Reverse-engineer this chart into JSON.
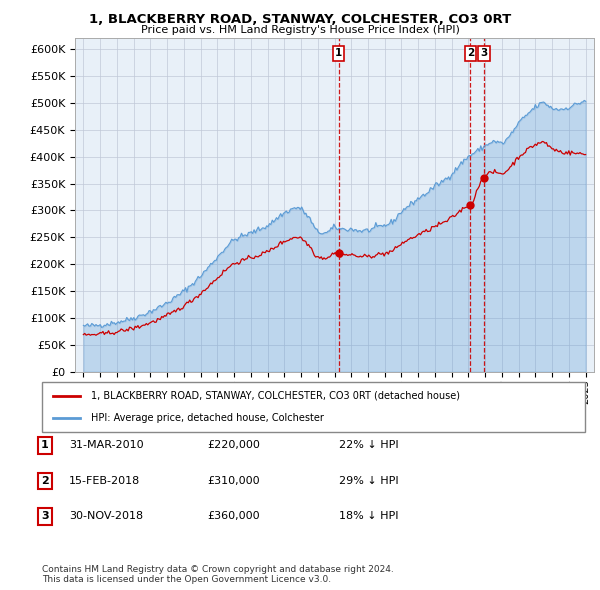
{
  "title": "1, BLACKBERRY ROAD, STANWAY, COLCHESTER, CO3 0RT",
  "subtitle": "Price paid vs. HM Land Registry's House Price Index (HPI)",
  "hpi_color": "#5b9bd5",
  "hpi_fill": "#ddeeff",
  "price_color": "#cc0000",
  "background_color": "#ffffff",
  "plot_bg": "#e8f0f8",
  "ylim": [
    0,
    620000
  ],
  "yticks": [
    0,
    50000,
    100000,
    150000,
    200000,
    250000,
    300000,
    350000,
    400000,
    450000,
    500000,
    550000,
    600000
  ],
  "xlim_start": 1994.5,
  "xlim_end": 2025.5,
  "transactions": [
    {
      "label": "1",
      "date_num": 2010.24,
      "price": 220000,
      "date_str": "31-MAR-2010",
      "pct": "22% ↓ HPI"
    },
    {
      "label": "2",
      "date_num": 2018.12,
      "price": 310000,
      "date_str": "15-FEB-2018",
      "pct": "29% ↓ HPI"
    },
    {
      "label": "3",
      "date_num": 2018.92,
      "price": 360000,
      "date_str": "30-NOV-2018",
      "pct": "18% ↓ HPI"
    }
  ],
  "legend_label_price": "1, BLACKBERRY ROAD, STANWAY, COLCHESTER, CO3 0RT (detached house)",
  "legend_label_hpi": "HPI: Average price, detached house, Colchester",
  "footnote": "Contains HM Land Registry data © Crown copyright and database right 2024.\nThis data is licensed under the Open Government Licence v3.0."
}
